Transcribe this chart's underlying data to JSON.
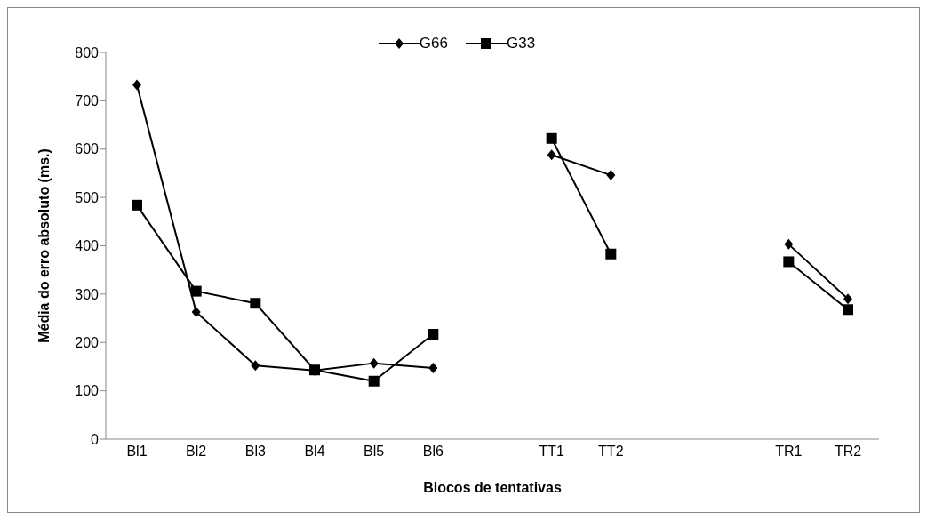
{
  "chart_data": {
    "type": "line",
    "xlabel": "Blocos de tentativas",
    "ylabel": "Média do erro absoluto (ms.)",
    "categories": [
      "Bl1",
      "Bl2",
      "Bl3",
      "Bl4",
      "Bl5",
      "Bl6",
      null,
      "TT1",
      "TT2",
      null,
      null,
      "TR1",
      "TR2"
    ],
    "series": [
      {
        "name": "G66",
        "color": "#000000",
        "marker": "diamond",
        "values": [
          733,
          263,
          152,
          142,
          157,
          147,
          null,
          588,
          546,
          null,
          null,
          403,
          290
        ]
      },
      {
        "name": "G33",
        "color": "#000000",
        "marker": "square",
        "values": [
          484,
          306,
          281,
          143,
          120,
          217,
          null,
          622,
          383,
          null,
          null,
          367,
          268
        ]
      }
    ],
    "ylim": [
      0,
      800
    ],
    "yticks": [
      0,
      100,
      200,
      300,
      400,
      500,
      600,
      700,
      800
    ],
    "grid": false,
    "legend": "top"
  }
}
